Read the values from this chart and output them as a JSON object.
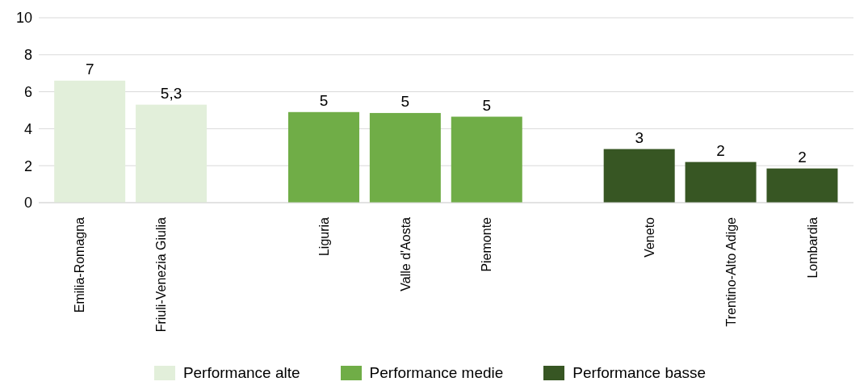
{
  "chart_data": {
    "type": "bar",
    "categories": [
      "Emilia-Romagna",
      "Friuli-Venezia Giulia",
      null,
      "Liguria",
      "Valle d'Aosta",
      "Piemonte",
      null,
      "Veneto",
      "Trentino-Alto Adige",
      "Lombardia"
    ],
    "series": [
      {
        "name": "Performance alte",
        "color": "#e2efda",
        "values": [
          6.6,
          5.3,
          null,
          null,
          null,
          null,
          null,
          null,
          null,
          null
        ],
        "value_labels": [
          "7",
          "5,3",
          null,
          null,
          null,
          null,
          null,
          null,
          null,
          null
        ]
      },
      {
        "name": "Performance medie",
        "color": "#70ad47",
        "values": [
          null,
          null,
          null,
          4.9,
          4.85,
          4.65,
          null,
          null,
          null,
          null
        ],
        "value_labels": [
          null,
          null,
          null,
          "5",
          "5",
          "5",
          null,
          null,
          null,
          null
        ]
      },
      {
        "name": "Performance basse",
        "color": "#375623",
        "values": [
          null,
          null,
          null,
          null,
          null,
          null,
          null,
          2.9,
          2.2,
          1.85
        ],
        "value_labels": [
          null,
          null,
          null,
          null,
          null,
          null,
          null,
          "3",
          "2",
          "2"
        ]
      }
    ],
    "ylim": [
      0,
      10
    ],
    "yticks": [
      0,
      2,
      4,
      6,
      8,
      10
    ],
    "grid": "y",
    "legend": "bottom"
  }
}
